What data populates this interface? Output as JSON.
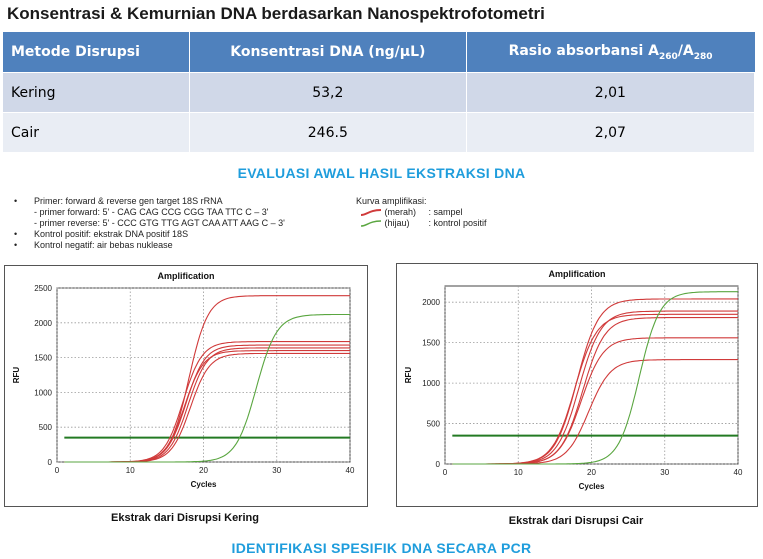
{
  "title": "Konsentrasi & Kemurnian DNA berdasarkan Nanospektrofotometri",
  "table": {
    "headers": [
      "Metode Disrupsi",
      "Konsentrasi DNA (ng/µL)",
      "Rasio absorbansi A",
      "260",
      "/A",
      "280"
    ],
    "rows": [
      [
        "Kering",
        "53,2",
        "2,01"
      ],
      [
        "Cair",
        "246.5",
        "2,07"
      ]
    ]
  },
  "heading1": "EVALUASI AWAL HASIL EKSTRAKSI DNA",
  "notes": {
    "bullet": "•",
    "primer": "Primer: forward & reverse gen target 18S rRNA",
    "fwd": "- primer forward: 5' - CAG CAG CCG CGG TAA TTC C – 3'",
    "rev": "- primer reverse: 5' - CCC GTG TTG AGT CAA ATT AAG C – 3'",
    "pos": "Kontrol positif: ekstrak DNA positif 18S",
    "neg": "Kontrol negatif: air bebas nuklease"
  },
  "legend": {
    "title": "Kurva amplifikasi:",
    "red_label": "(merah)",
    "red_desc": ": sampel",
    "green_label": "(hijau)",
    "green_desc": ": kontrol positif"
  },
  "chart_data": [
    {
      "type": "line",
      "title": "Amplification",
      "xlabel": "Cycles",
      "ylabel": "RFU",
      "xlim": [
        0,
        40
      ],
      "ylim": [
        0,
        2500
      ],
      "xticks": [
        0,
        10,
        20,
        30,
        40
      ],
      "yticks": [
        0,
        500,
        1000,
        1500,
        2000,
        2500
      ],
      "grid": true,
      "threshold": 350,
      "caption": "Ekstrak dari Disrupsi Kering",
      "series": [
        {
          "color": "#d03a3a",
          "plateau": 2390,
          "midpoint": 18.0,
          "slope": 1.3
        },
        {
          "color": "#d03a3a",
          "plateau": 1730,
          "midpoint": 17.2,
          "slope": 1.3
        },
        {
          "color": "#d03a3a",
          "plateau": 1680,
          "midpoint": 17.6,
          "slope": 1.3
        },
        {
          "color": "#d03a3a",
          "plateau": 1640,
          "midpoint": 17.9,
          "slope": 1.3
        },
        {
          "color": "#d03a3a",
          "plateau": 1600,
          "midpoint": 17.4,
          "slope": 1.3
        },
        {
          "color": "#d03a3a",
          "plateau": 1560,
          "midpoint": 18.2,
          "slope": 1.3
        },
        {
          "color": "#5aa640",
          "plateau": 2120,
          "midpoint": 27.2,
          "slope": 1.4
        }
      ]
    },
    {
      "type": "line",
      "title": "Amplification",
      "xlabel": "Cycles",
      "ylabel": "RFU",
      "xlim": [
        0,
        40
      ],
      "ylim": [
        0,
        2200
      ],
      "xticks": [
        0,
        10,
        20,
        30,
        40
      ],
      "yticks": [
        0,
        500,
        1000,
        1500,
        2000
      ],
      "grid": true,
      "threshold": 350,
      "caption": "Ekstrak dari Disrupsi Cair",
      "series": [
        {
          "color": "#d03a3a",
          "plateau": 2040,
          "midpoint": 18.0,
          "slope": 1.5
        },
        {
          "color": "#d03a3a",
          "plateau": 1890,
          "midpoint": 18.3,
          "slope": 1.5
        },
        {
          "color": "#d03a3a",
          "plateau": 1850,
          "midpoint": 17.7,
          "slope": 1.5
        },
        {
          "color": "#d03a3a",
          "plateau": 1810,
          "midpoint": 18.8,
          "slope": 1.5
        },
        {
          "color": "#d03a3a",
          "plateau": 1560,
          "midpoint": 18.6,
          "slope": 1.5
        },
        {
          "color": "#d03a3a",
          "plateau": 1290,
          "midpoint": 19.6,
          "slope": 1.5
        },
        {
          "color": "#5aa640",
          "plateau": 2130,
          "midpoint": 26.5,
          "slope": 1.4
        }
      ]
    }
  ],
  "heading2": "IDENTIFIKASI SPESIFIK DNA SECARA PCR"
}
